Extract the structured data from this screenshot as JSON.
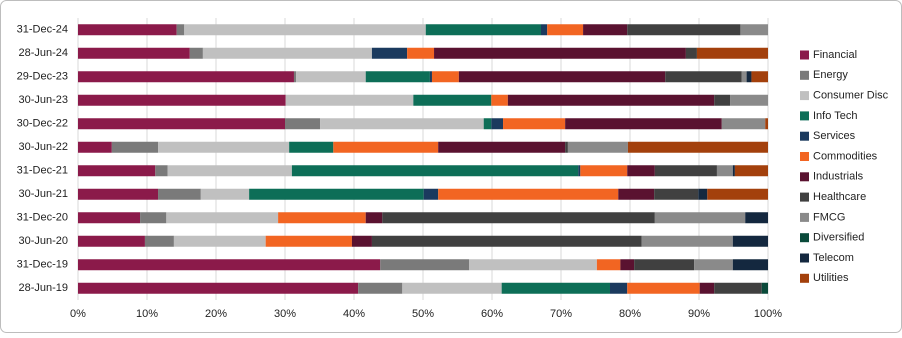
{
  "chart_data": {
    "type": "stacked_barh",
    "categories": [
      "31-Dec-24",
      "28-Jun-24",
      "29-Dec-23",
      "30-Jun-23",
      "30-Dec-22",
      "30-Jun-22",
      "31-Dec-21",
      "30-Jun-21",
      "31-Dec-20",
      "30-Jun-20",
      "31-Dec-19",
      "28-Jun-19"
    ],
    "series": [
      {
        "name": "Financial",
        "color": "#8b1a4a",
        "values": [
          14.3,
          16.2,
          31.3,
          30.1,
          30,
          4.9,
          11.2,
          11.6,
          9,
          9.7,
          43.8,
          40.6
        ]
      },
      {
        "name": "Energy",
        "color": "#7a7a7a",
        "values": [
          1.1,
          1.9,
          0.3,
          0,
          5.1,
          6.7,
          1.8,
          6.2,
          3.8,
          4.2,
          12.9,
          6.4
        ]
      },
      {
        "name": "Consumer Disc",
        "color": "#c0c0c0",
        "values": [
          35,
          24.5,
          10.1,
          18.5,
          23.7,
          19,
          18,
          7,
          16.2,
          13.3,
          18.5,
          14.4
        ]
      },
      {
        "name": "Info Tech",
        "color": "#0d6e57",
        "values": [
          16.7,
          0,
          9.3,
          11.3,
          1.1,
          6.4,
          41.5,
          25.3,
          0,
          0,
          0,
          15.7
        ]
      },
      {
        "name": "Services",
        "color": "#1b3a5e",
        "values": [
          0.9,
          5.1,
          0.3,
          0,
          1.7,
          0,
          0.3,
          2.1,
          0,
          0,
          0,
          2.5
        ]
      },
      {
        "name": "Commodities",
        "color": "#f26522",
        "values": [
          5.2,
          3.9,
          3.9,
          2.4,
          9,
          15.2,
          6.8,
          26.1,
          12.7,
          12.5,
          3.4,
          10.5
        ]
      },
      {
        "name": "Industrials",
        "color": "#5a1230",
        "values": [
          6.4,
          36.5,
          29.9,
          29.9,
          22.7,
          18.4,
          4,
          5.2,
          2.4,
          2.9,
          2,
          2.1
        ]
      },
      {
        "name": "Healthcare",
        "color": "#404040",
        "values": [
          16.4,
          1.6,
          11.1,
          2.3,
          0,
          0.4,
          9,
          6.4,
          39.5,
          39.1,
          8.7,
          6.9
        ]
      },
      {
        "name": "FMCG",
        "color": "#8a8a8a",
        "values": [
          4,
          0,
          0.7,
          5.5,
          6.3,
          8.7,
          2.3,
          0,
          13.1,
          13.2,
          5.6,
          0
        ]
      },
      {
        "name": "Diversified",
        "color": "#0a4a3a",
        "values": [
          0,
          0,
          0,
          0,
          0,
          0,
          0,
          0,
          0,
          0,
          0,
          0.9
        ]
      },
      {
        "name": "Telecom",
        "color": "#14283f",
        "values": [
          0,
          0,
          0.7,
          0,
          0,
          0,
          0.3,
          1.3,
          3.3,
          5.1,
          5.1,
          0
        ]
      },
      {
        "name": "Utilities",
        "color": "#a3400c",
        "values": [
          0,
          10.3,
          2.4,
          0,
          0.4,
          20.3,
          4.8,
          8.8,
          0,
          0,
          0,
          0
        ]
      }
    ],
    "xlim": [
      0,
      100
    ],
    "xticks": [
      {
        "value": 0,
        "label": "0%"
      },
      {
        "value": 10,
        "label": "10%"
      },
      {
        "value": 20,
        "label": "20%"
      },
      {
        "value": 30,
        "label": "30%"
      },
      {
        "value": 40,
        "label": "40%"
      },
      {
        "value": 50,
        "label": "50%"
      },
      {
        "value": 60,
        "label": "60%"
      },
      {
        "value": 70,
        "label": "70%"
      },
      {
        "value": 80,
        "label": "80%"
      },
      {
        "value": 90,
        "label": "90%"
      },
      {
        "value": 100,
        "label": "100%"
      }
    ],
    "grid": true,
    "legend": "right"
  }
}
